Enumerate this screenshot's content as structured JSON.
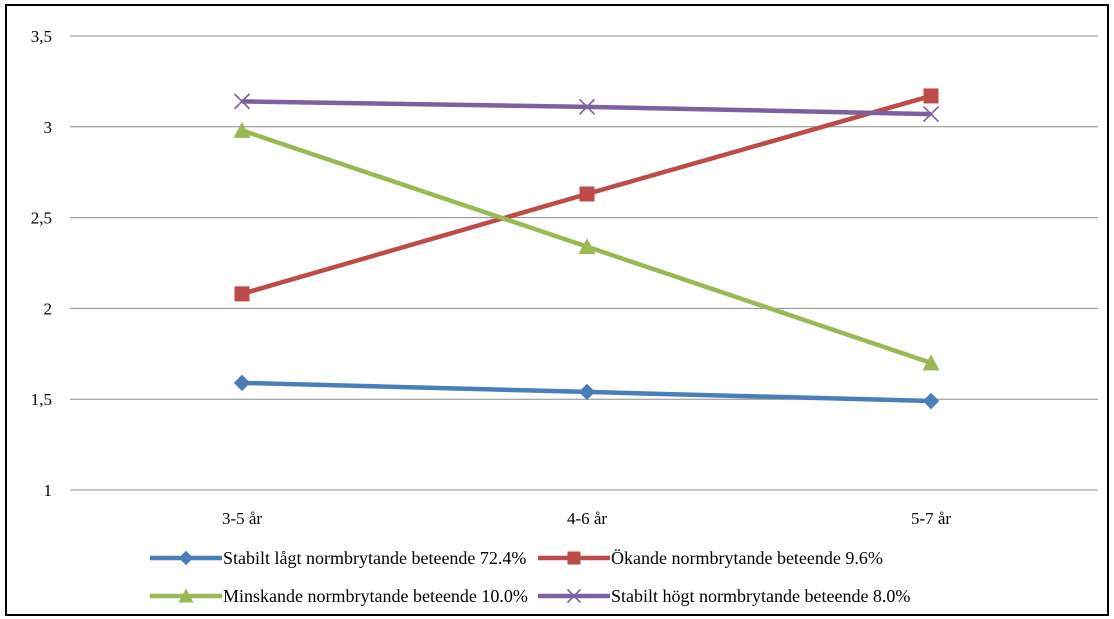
{
  "chart_data": {
    "type": "line",
    "title": "",
    "xlabel": "",
    "ylabel": "",
    "categories": [
      "3-5 år",
      "4-6 år",
      "5-7 år"
    ],
    "yticks": [
      "1",
      "1,5",
      "2",
      "2,5",
      "3",
      "3,5"
    ],
    "ylim": [
      1,
      3.5
    ],
    "grid": true,
    "legend_position": "bottom",
    "series": [
      {
        "name": "Stabilt lågt normbrytande beteende  72.4%",
        "values": [
          1.59,
          1.54,
          1.49
        ],
        "color": "#4a7ebb",
        "marker": "diamond"
      },
      {
        "name": "Ökande normbrytande beteende 9.6%",
        "values": [
          2.08,
          2.63,
          3.17
        ],
        "color": "#be4b48",
        "marker": "square"
      },
      {
        "name": "Minskande normbrytande beteende 10.0%",
        "values": [
          2.98,
          2.34,
          1.7
        ],
        "color": "#98b954",
        "marker": "triangle"
      },
      {
        "name": "Stabilt högt normbrytande beteende  8.0%",
        "values": [
          3.14,
          3.11,
          3.07
        ],
        "color": "#7d60a0",
        "marker": "x"
      }
    ]
  }
}
